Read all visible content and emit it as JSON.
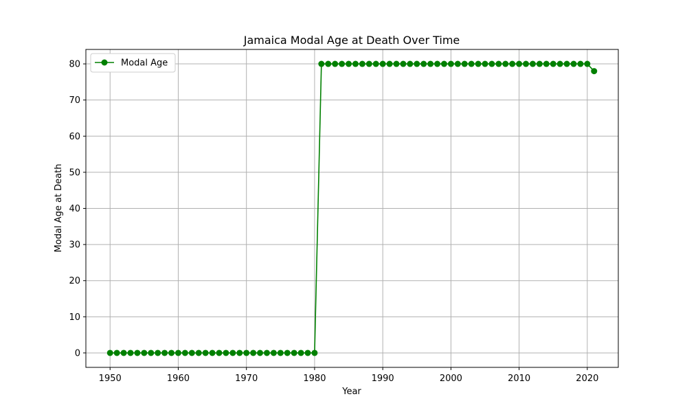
{
  "chart_data": {
    "type": "line",
    "title": "Jamaica Modal Age at Death Over Time",
    "xlabel": "Year",
    "ylabel": "Modal Age at Death",
    "xlim": [
      1946.45,
      2024.55
    ],
    "ylim": [
      -4,
      84
    ],
    "xticks": [
      1950,
      1960,
      1970,
      1980,
      1990,
      2000,
      2010,
      2020
    ],
    "yticks": [
      0,
      10,
      20,
      30,
      40,
      50,
      60,
      70,
      80
    ],
    "grid": true,
    "legend_position": "top-left",
    "series": [
      {
        "name": "Modal Age",
        "color": "#008000",
        "marker": "circle",
        "x": [
          1950,
          1951,
          1952,
          1953,
          1954,
          1955,
          1956,
          1957,
          1958,
          1959,
          1960,
          1961,
          1962,
          1963,
          1964,
          1965,
          1966,
          1967,
          1968,
          1969,
          1970,
          1971,
          1972,
          1973,
          1974,
          1975,
          1976,
          1977,
          1978,
          1979,
          1980,
          1981,
          1982,
          1983,
          1984,
          1985,
          1986,
          1987,
          1988,
          1989,
          1990,
          1991,
          1992,
          1993,
          1994,
          1995,
          1996,
          1997,
          1998,
          1999,
          2000,
          2001,
          2002,
          2003,
          2004,
          2005,
          2006,
          2007,
          2008,
          2009,
          2010,
          2011,
          2012,
          2013,
          2014,
          2015,
          2016,
          2017,
          2018,
          2019,
          2020,
          2021
        ],
        "y": [
          0,
          0,
          0,
          0,
          0,
          0,
          0,
          0,
          0,
          0,
          0,
          0,
          0,
          0,
          0,
          0,
          0,
          0,
          0,
          0,
          0,
          0,
          0,
          0,
          0,
          0,
          0,
          0,
          0,
          0,
          0,
          80,
          80,
          80,
          80,
          80,
          80,
          80,
          80,
          80,
          80,
          80,
          80,
          80,
          80,
          80,
          80,
          80,
          80,
          80,
          80,
          80,
          80,
          80,
          80,
          80,
          80,
          80,
          80,
          80,
          80,
          80,
          80,
          80,
          80,
          80,
          80,
          80,
          80,
          80,
          80,
          78
        ]
      }
    ]
  }
}
